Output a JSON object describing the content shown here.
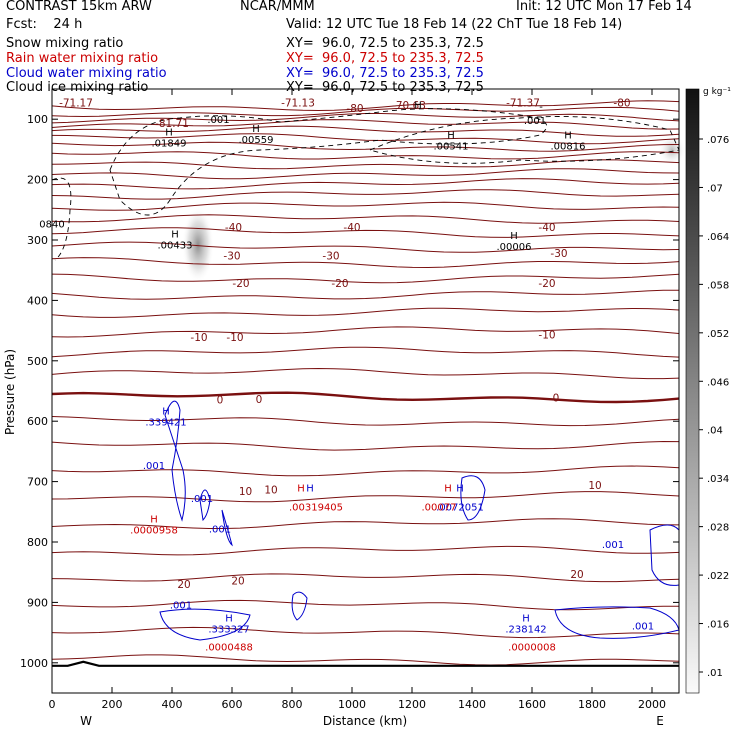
{
  "header": {
    "left1": "CONTRAST 15km ARW",
    "left2": "Fcst:    24 h",
    "center": "NCAR/MMM",
    "init": "Init: 12 UTC Mon 17 Feb 14",
    "valid": "Valid: 12 UTC Tue 18 Feb 14 (22 ChT Tue 18 Feb 14)"
  },
  "fields": [
    {
      "name": "Snow mixing ratio",
      "xy": "XY=  96.0, 72.5 to 235.3, 72.5",
      "color": "#000000"
    },
    {
      "name": "Rain water mixing ratio",
      "xy": "XY=  96.0, 72.5 to 235.3, 72.5",
      "color": "#cc0000"
    },
    {
      "name": "Cloud water mixing ratio",
      "xy": "XY=  96.0, 72.5 to 235.3, 72.5",
      "color": "#0000cc"
    },
    {
      "name": "Cloud ice mixing ratio",
      "xy": "XY=  96.0, 72.5 to 235.3, 72.5",
      "color": "#000000"
    }
  ],
  "chart_data": {
    "type": "contour",
    "xlabel": "Distance (km)",
    "ylabel": "Pressure (hPa)",
    "xlim": [
      0,
      2090
    ],
    "ylim": [
      1050,
      50
    ],
    "x_ticks": [
      0,
      200,
      400,
      600,
      800,
      1000,
      1200,
      1400,
      1600,
      1800,
      2000
    ],
    "y_ticks": [
      100,
      200,
      300,
      400,
      500,
      600,
      700,
      800,
      900,
      1000
    ],
    "left_end": "W",
    "right_end": "E",
    "colorbar": {
      "unit": "g kg⁻¹",
      "ticks": [
        ".076",
        ".07",
        ".064",
        ".058",
        ".052",
        ".046",
        ".04",
        ".034",
        ".028",
        ".022",
        ".016",
        ".01"
      ]
    },
    "temperature_labels": [
      {
        "x": 80,
        "p": 79,
        "text": "-71.17"
      },
      {
        "x": 820,
        "p": 79,
        "text": "-71.13"
      },
      {
        "x": 1190,
        "p": 83,
        "text": "-70.63"
      },
      {
        "x": 1570,
        "p": 79,
        "text": "-71.37"
      },
      {
        "x": 1900,
        "p": 79,
        "text": "-80"
      },
      {
        "x": 1010,
        "p": 88,
        "text": "-80"
      },
      {
        "x": 400,
        "p": 113,
        "text": "-81.71"
      },
      {
        "x": 605,
        "p": 285,
        "text": "-40"
      },
      {
        "x": 1000,
        "p": 285,
        "text": "-40"
      },
      {
        "x": 1650,
        "p": 285,
        "text": "-40"
      },
      {
        "x": 600,
        "p": 332,
        "text": "-30"
      },
      {
        "x": 930,
        "p": 332,
        "text": "-30"
      },
      {
        "x": 1690,
        "p": 328,
        "text": "-30"
      },
      {
        "x": 630,
        "p": 378,
        "text": "-20"
      },
      {
        "x": 960,
        "p": 378,
        "text": "-20"
      },
      {
        "x": 1650,
        "p": 378,
        "text": "-20"
      },
      {
        "x": 490,
        "p": 467,
        "text": "-10"
      },
      {
        "x": 610,
        "p": 467,
        "text": "-10"
      },
      {
        "x": 1650,
        "p": 463,
        "text": "-10"
      },
      {
        "x": 560,
        "p": 571,
        "text": "0"
      },
      {
        "x": 690,
        "p": 570,
        "text": "0"
      },
      {
        "x": 1680,
        "p": 567,
        "text": "0"
      },
      {
        "x": 645,
        "p": 722,
        "text": "10"
      },
      {
        "x": 730,
        "p": 720,
        "text": "10"
      },
      {
        "x": 1810,
        "p": 712,
        "text": "10"
      },
      {
        "x": 440,
        "p": 876,
        "text": "20"
      },
      {
        "x": 620,
        "p": 870,
        "text": "20"
      },
      {
        "x": 1750,
        "p": 860,
        "text": "20"
      }
    ],
    "extrema_labels": [
      {
        "x": 390,
        "p": 127,
        "text": "H\n.01849",
        "color": "#000000"
      },
      {
        "x": 680,
        "p": 121,
        "text": "H\n.00559",
        "color": "#000000"
      },
      {
        "x": 1220,
        "p": 82,
        "text": "H",
        "color": "#000000"
      },
      {
        "x": 1330,
        "p": 132,
        "text": "H\n.00541",
        "color": "#000000"
      },
      {
        "x": 1720,
        "p": 132,
        "text": "H\n.00816",
        "color": "#000000"
      },
      {
        "x": 1610,
        "p": 108,
        "text": ".001",
        "color": "#000000"
      },
      {
        "x": 1630,
        "p": 85,
        "text": "-",
        "color": "#000000"
      },
      {
        "x": 555,
        "p": 106,
        "text": ".001",
        "color": "#000000"
      },
      {
        "x": 0,
        "p": 279,
        "text": "0840",
        "color": "#000000"
      },
      {
        "x": 410,
        "p": 296,
        "text": "H\n.00433",
        "color": "#000000"
      },
      {
        "x": 1540,
        "p": 298,
        "text": "H\n.00006",
        "color": "#000000"
      },
      {
        "x": 380,
        "p": 589,
        "text": "H\n.339421",
        "color": "#0000cc"
      },
      {
        "x": 340,
        "p": 679,
        "text": ".001",
        "color": "#0000cc"
      },
      {
        "x": 500,
        "p": 734,
        "text": ".001",
        "color": "#0000cc"
      },
      {
        "x": 560,
        "p": 784,
        "text": ".001",
        "color": "#0000cc"
      },
      {
        "x": 1870,
        "p": 810,
        "text": ".001",
        "color": "#0000cc"
      },
      {
        "x": 430,
        "p": 910,
        "text": ".001",
        "color": "#0000cc"
      },
      {
        "x": 1970,
        "p": 945,
        "text": ".001",
        "color": "#0000cc"
      },
      {
        "x": 590,
        "p": 932,
        "text": "H\n.333327",
        "color": "#0000cc"
      },
      {
        "x": 1580,
        "p": 932,
        "text": "H\n.238142",
        "color": "#0000cc"
      },
      {
        "x": 860,
        "p": 716,
        "text": "H",
        "color": "#0000cc"
      },
      {
        "x": 1360,
        "p": 716,
        "text": "H",
        "color": "#0000cc"
      },
      {
        "x": 1360,
        "p": 748,
        "text": ".0072051",
        "color": "#0000cc"
      },
      {
        "x": 830,
        "p": 716,
        "text": "H",
        "color": "#cc0000"
      },
      {
        "x": 1320,
        "p": 716,
        "text": "H",
        "color": "#cc0000"
      },
      {
        "x": 880,
        "p": 748,
        "text": ".00319405",
        "color": "#cc0000"
      },
      {
        "x": 1290,
        "p": 748,
        "text": ".00077",
        "color": "#cc0000"
      },
      {
        "x": 340,
        "p": 768,
        "text": "H\n.0000958",
        "color": "#cc0000"
      },
      {
        "x": 590,
        "p": 980,
        "text": ".0000488",
        "color": "#cc0000"
      },
      {
        "x": 1600,
        "p": 980,
        "text": ".0000008",
        "color": "#cc0000"
      }
    ]
  }
}
